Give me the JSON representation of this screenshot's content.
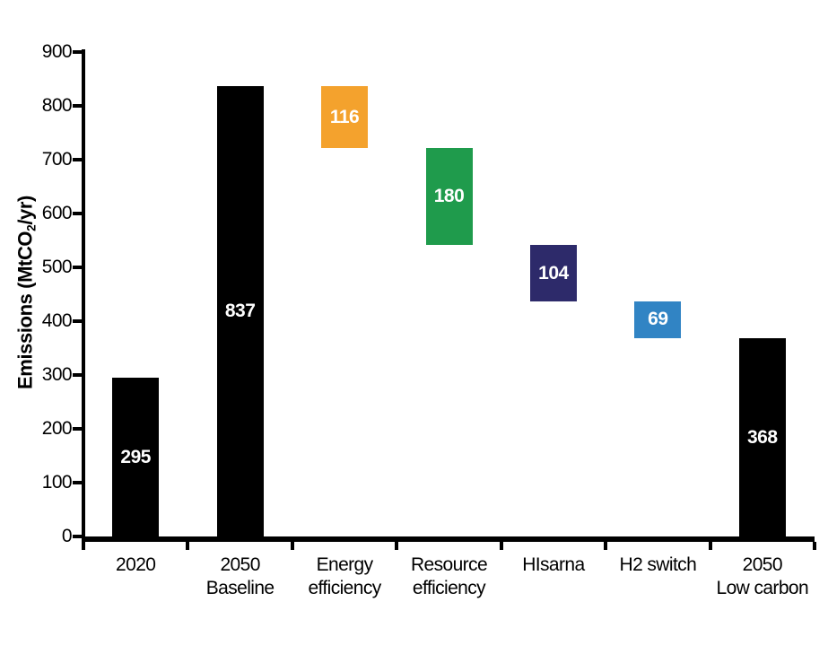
{
  "chart_data": {
    "type": "bar",
    "subtype": "waterfall",
    "title": "",
    "xlabel": "",
    "ylabel": "Emissions (MtCO₂/yr)",
    "ylabel_parts": {
      "pre": "Emissions (MtCO",
      "sub": "2",
      "post": "/yr)"
    },
    "ylim": [
      0,
      900
    ],
    "ytick_step": 100,
    "grid": false,
    "legend": false,
    "colors": {
      "axis": "#000000",
      "total_bar": "#000000",
      "energy_efficiency": "#F4A22D",
      "resource_efficiency": "#1F9B4C",
      "hisarna": "#2D2A6A",
      "h2_switch": "#3184C4",
      "value_label": "#ffffff"
    },
    "categories": [
      "2020",
      "2050 Baseline",
      "Energy efficiency",
      "Resource efficiency",
      "HIsarna",
      "H2 switch",
      "2050 Low carbon"
    ],
    "bars": [
      {
        "label": "2020",
        "label_lines": [
          "2020"
        ],
        "value": 295,
        "start": 0,
        "end": 295,
        "color": "#000000",
        "role": "total"
      },
      {
        "label": "2050 Baseline",
        "label_lines": [
          "2050",
          "Baseline"
        ],
        "value": 837,
        "start": 0,
        "end": 837,
        "color": "#000000",
        "role": "total"
      },
      {
        "label": "Energy efficiency",
        "label_lines": [
          "Energy",
          "efficiency"
        ],
        "value": 116,
        "start": 721,
        "end": 837,
        "color": "#F4A22D",
        "role": "decrease"
      },
      {
        "label": "Resource efficiency",
        "label_lines": [
          "Resource",
          "efficiency"
        ],
        "value": 180,
        "start": 541,
        "end": 721,
        "color": "#1F9B4C",
        "role": "decrease"
      },
      {
        "label": "HIsarna",
        "label_lines": [
          "HIsarna"
        ],
        "value": 104,
        "start": 437,
        "end": 541,
        "color": "#2D2A6A",
        "role": "decrease"
      },
      {
        "label": "H2 switch",
        "label_lines": [
          "H2 switch"
        ],
        "value": 69,
        "start": 368,
        "end": 437,
        "color": "#3184C4",
        "role": "decrease"
      },
      {
        "label": "2050 Low carbon",
        "label_lines": [
          "2050",
          "Low carbon"
        ],
        "value": 368,
        "start": 0,
        "end": 368,
        "color": "#000000",
        "role": "total"
      }
    ]
  }
}
